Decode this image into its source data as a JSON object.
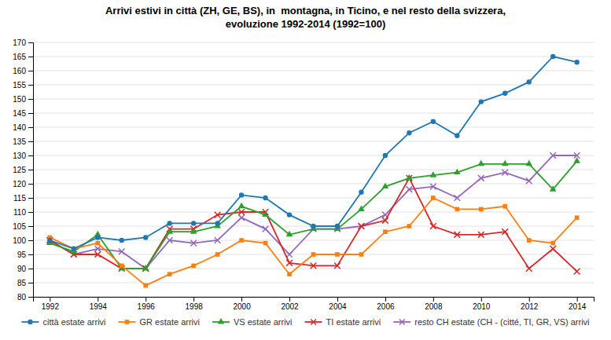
{
  "chart_data": {
    "type": "line",
    "title": "Arrivi estivi in città (ZH, GE, BS), in  montagna, in Ticino, e nel resto della svizzera,\nevoluzione 1992-2014 (1992=100)",
    "x": [
      1992,
      1993,
      1994,
      1995,
      1996,
      1997,
      1998,
      1999,
      2000,
      2001,
      2002,
      2003,
      2004,
      2005,
      2006,
      2007,
      2008,
      2009,
      2010,
      2011,
      2012,
      2013,
      2014
    ],
    "series": [
      {
        "name": "città estate arrivi",
        "marker": "circle",
        "values": [
          100,
          97,
          101,
          100,
          101,
          106,
          106,
          106,
          116,
          115,
          109,
          105,
          105,
          117,
          130,
          138,
          142,
          137,
          149,
          152,
          156,
          165,
          163
        ]
      },
      {
        "name": "GR estate arrivi",
        "marker": "square",
        "values": [
          101,
          97,
          99,
          91,
          84,
          88,
          91,
          95,
          100,
          99,
          88,
          95,
          95,
          95,
          103,
          105,
          115,
          111,
          111,
          112,
          100,
          99,
          108
        ]
      },
      {
        "name": "VS estate arrivi",
        "marker": "triangle",
        "values": [
          99,
          96,
          102,
          90,
          90,
          103,
          103,
          105,
          112,
          109,
          102,
          104,
          104,
          111,
          119,
          122,
          123,
          124,
          127,
          127,
          127,
          118,
          128
        ]
      },
      {
        "name": "TI estate arrivi",
        "marker": "x",
        "values": [
          100,
          95,
          95,
          90,
          90,
          104,
          104,
          109,
          110,
          110,
          92,
          91,
          91,
          105,
          107,
          122,
          105,
          102,
          102,
          103,
          90,
          97,
          89
        ]
      },
      {
        "name": "resto CH estate (CH - (citté, TI, GR, VS) arrivi",
        "marker": "x",
        "values": [
          100,
          95,
          97,
          96,
          90,
          100,
          99,
          100,
          108,
          104,
          95,
          104,
          104,
          105,
          109,
          118,
          119,
          115,
          122,
          124,
          121,
          130,
          130
        ]
      }
    ],
    "xlim": [
      1991.3,
      2014.7
    ],
    "xticks": [
      1992,
      1994,
      1996,
      1998,
      2000,
      2002,
      2004,
      2006,
      2008,
      2010,
      2012,
      2014
    ],
    "ylim": [
      80,
      170
    ],
    "yticks": [
      80,
      85,
      90,
      95,
      100,
      105,
      110,
      115,
      120,
      125,
      130,
      135,
      140,
      145,
      150,
      155,
      160,
      165,
      170
    ],
    "grid": true,
    "legend": "bottom"
  }
}
